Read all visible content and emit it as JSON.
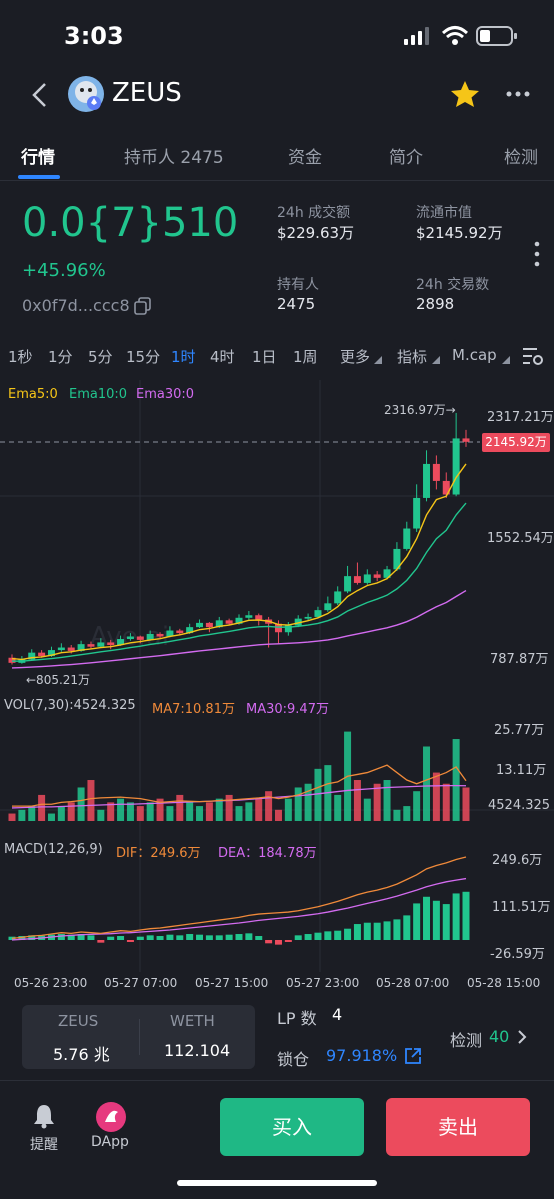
{
  "status_bar": {
    "time": "3:03"
  },
  "header": {
    "title": "ZEUS",
    "back_icon": "chevron-left-icon",
    "star_icon": "star-icon",
    "more_icon": "more-icon"
  },
  "tabs": [
    {
      "label": "行情",
      "active": true
    },
    {
      "label": "持币人 2475",
      "active": false
    },
    {
      "label": "资金",
      "active": false
    },
    {
      "label": "简介",
      "active": false
    },
    {
      "label": "检测",
      "active": false
    }
  ],
  "token": {
    "price": "0.0{7}510",
    "change": "+45.96%",
    "address": "0x0f7d...ccc8"
  },
  "stats": {
    "volume_label": "24h 成交额",
    "volume_value": "$229.63万",
    "mcap_label": "流通市值",
    "mcap_value": "$2145.92万",
    "holders_label": "持有人",
    "holders_value": "2475",
    "tx_label": "24h 交易数",
    "tx_value": "2898"
  },
  "timeframes": [
    "1秒",
    "1分",
    "5分",
    "15分",
    "1时",
    "4时",
    "1日",
    "1周",
    "更多",
    "指标",
    "M.cap"
  ],
  "selected_timeframe": "1时",
  "ema_legend": {
    "ema5": "Ema5:0",
    "ema10": "Ema10:0",
    "ema30": "Ema30:0"
  },
  "price_axis": [
    "2317.21万",
    "1552.54万",
    "787.87万"
  ],
  "current_price_tag": "2145.92万",
  "high_annotation": "2316.97万→",
  "low_annotation": "←805.21万",
  "watermark": "Ave.ai",
  "vol_legend": {
    "vol": "VOL(7,30):4524.325",
    "ma7": "MA7:10.81万",
    "ma30": "MA30:9.47万"
  },
  "vol_axis": [
    "25.77万",
    "13.11万",
    "4524.325"
  ],
  "macd_legend": {
    "macd": "MACD(12,26,9)",
    "dif": "DIF：249.6万",
    "dea": "DEA：184.78万"
  },
  "macd_axis": [
    "249.6万",
    "111.51万",
    "-26.59万"
  ],
  "time_axis": [
    "05-26 23:00",
    "05-27 07:00",
    "05-27 15:00",
    "05-27 23:00",
    "05-28 07:00",
    "05-28 15:00"
  ],
  "pair_card": {
    "token_a": "ZEUS",
    "amount_a": "5.76 兆",
    "token_b": "WETH",
    "amount_b": "112.104"
  },
  "lp": {
    "label": "LP 数",
    "value": "4",
    "lock_label": "锁仓",
    "lock_value": "97.918%"
  },
  "detect": {
    "label": "检测",
    "score": "40"
  },
  "bottom": {
    "alert_label": "提醒",
    "dapp_label": "DApp",
    "buy_label": "买入",
    "sell_label": "卖出"
  },
  "colors": {
    "up": "#21c58e",
    "down": "#ec4b5d",
    "accent": "#2f86ff",
    "ema5": "#f5c518",
    "ema10": "#21c58e",
    "ema30": "#d36bf0",
    "ma7": "#f08a3a"
  },
  "chart_data": {
    "type": "candlestick",
    "ylim": [
      787.87,
      2317.21
    ],
    "candles": [
      [
        860,
        830,
        880,
        820
      ],
      [
        830,
        850,
        870,
        825
      ],
      [
        850,
        890,
        910,
        845
      ],
      [
        890,
        870,
        905,
        860
      ],
      [
        870,
        905,
        925,
        865
      ],
      [
        905,
        920,
        945,
        895
      ],
      [
        920,
        900,
        935,
        885
      ],
      [
        900,
        940,
        960,
        895
      ],
      [
        940,
        925,
        955,
        915
      ],
      [
        925,
        950,
        975,
        920
      ],
      [
        950,
        935,
        965,
        910
      ],
      [
        935,
        970,
        990,
        930
      ],
      [
        970,
        985,
        1005,
        960
      ],
      [
        985,
        965,
        990,
        945
      ],
      [
        965,
        1000,
        1020,
        960
      ],
      [
        1000,
        985,
        1010,
        975
      ],
      [
        985,
        1020,
        1045,
        980
      ],
      [
        1020,
        1005,
        1030,
        995
      ],
      [
        1005,
        1040,
        1060,
        1000
      ],
      [
        1040,
        1065,
        1085,
        1035
      ],
      [
        1065,
        1040,
        1070,
        1010
      ],
      [
        1040,
        1080,
        1100,
        1035
      ],
      [
        1080,
        1060,
        1090,
        1050
      ],
      [
        1060,
        1095,
        1115,
        1055
      ],
      [
        1095,
        1110,
        1135,
        1080
      ],
      [
        1110,
        1085,
        1120,
        1050
      ],
      [
        1085,
        1060,
        1100,
        920
      ],
      [
        1060,
        1010,
        1080,
        940
      ],
      [
        1010,
        1050,
        1070,
        990
      ],
      [
        1050,
        1090,
        1110,
        1040
      ],
      [
        1090,
        1100,
        1120,
        1080
      ],
      [
        1100,
        1140,
        1160,
        1090
      ],
      [
        1140,
        1180,
        1220,
        1130
      ],
      [
        1180,
        1250,
        1280,
        1170
      ],
      [
        1250,
        1340,
        1400,
        1240
      ],
      [
        1340,
        1300,
        1420,
        1290
      ],
      [
        1300,
        1350,
        1380,
        1290
      ],
      [
        1350,
        1330,
        1370,
        1310
      ],
      [
        1330,
        1380,
        1400,
        1320
      ],
      [
        1380,
        1500,
        1540,
        1370
      ],
      [
        1500,
        1620,
        1660,
        1490
      ],
      [
        1620,
        1800,
        1880,
        1600
      ],
      [
        1800,
        2000,
        2080,
        1780
      ],
      [
        2000,
        1900,
        2050,
        1850
      ],
      [
        1900,
        1820,
        1950,
        1800
      ],
      [
        1820,
        2150,
        2300,
        1810
      ],
      [
        2150,
        2130,
        2200,
        2100
      ]
    ],
    "ema5": [
      855,
      850,
      860,
      865,
      875,
      890,
      895,
      905,
      912,
      920,
      925,
      935,
      948,
      955,
      965,
      972,
      985,
      995,
      1008,
      1025,
      1032,
      1045,
      1052,
      1065,
      1080,
      1082,
      1075,
      1055,
      1052,
      1065,
      1078,
      1095,
      1120,
      1160,
      1220,
      1255,
      1285,
      1300,
      1325,
      1380,
      1455,
      1560,
      1700,
      1790,
      1810,
      1920,
      2000
    ],
    "ema10": [
      840,
      840,
      845,
      850,
      855,
      862,
      870,
      878,
      886,
      895,
      902,
      910,
      920,
      928,
      938,
      946,
      956,
      966,
      976,
      988,
      996,
      1006,
      1015,
      1025,
      1036,
      1042,
      1044,
      1040,
      1040,
      1045,
      1052,
      1062,
      1078,
      1100,
      1135,
      1160,
      1185,
      1205,
      1228,
      1265,
      1315,
      1385,
      1480,
      1560,
      1610,
      1700,
      1770
    ],
    "ema30": [
      800,
      802,
      805,
      808,
      812,
      816,
      820,
      825,
      830,
      836,
      842,
      848,
      854,
      860,
      866,
      872,
      879,
      886,
      893,
      900,
      906,
      912,
      918,
      924,
      930,
      936,
      940,
      942,
      945,
      948,
      952,
      958,
      965,
      975,
      988,
      1000,
      1012,
      1024,
      1036,
      1052,
      1072,
      1098,
      1130,
      1160,
      1185,
      1220,
      1255
    ],
    "volume": [
      2,
      3,
      4,
      7,
      2,
      4,
      5,
      9,
      11,
      3,
      5,
      6,
      5,
      4,
      5,
      6,
      4,
      7,
      5,
      4,
      5,
      6,
      7,
      4,
      5,
      6,
      8,
      3,
      6,
      9,
      10,
      14,
      15,
      7,
      24,
      11,
      6,
      10,
      11,
      3,
      4,
      8,
      20,
      13,
      10,
      22,
      9
    ],
    "vol_ma7": [
      4,
      4,
      4,
      4.5,
      4.5,
      5,
      5.2,
      5.5,
      6,
      6.2,
      6.3,
      6.4,
      6.2,
      6,
      5.5,
      5,
      5.2,
      5.4,
      5.3,
      5.2,
      5.3,
      5.5,
      5.6,
      5.8,
      6,
      6.2,
      6.5,
      6,
      6.4,
      7,
      8,
      9,
      10,
      10.5,
      12,
      12.5,
      13,
      14,
      15,
      13,
      11,
      10,
      11,
      12,
      13,
      14.5,
      10.81
    ],
    "vol_ma30": [
      3.5,
      3.6,
      3.7,
      3.8,
      3.8,
      3.9,
      4,
      4.1,
      4.2,
      4.3,
      4.4,
      4.5,
      4.5,
      4.6,
      4.7,
      4.8,
      4.9,
      5,
      5.1,
      5.2,
      5.3,
      5.4,
      5.5,
      5.6,
      5.8,
      6,
      6.2,
      6.4,
      6.6,
      6.8,
      7,
      7.3,
      7.6,
      7.9,
      8.2,
      8.4,
      8.6,
      8.8,
      9,
      9.1,
      9.2,
      9.3,
      9.4,
      9.45,
      9.5,
      9.5,
      9.47
    ],
    "macd_hist": [
      10,
      12,
      14,
      13,
      16,
      18,
      16,
      18,
      14,
      -8,
      10,
      12,
      -6,
      10,
      14,
      12,
      16,
      14,
      18,
      16,
      14,
      14,
      16,
      18,
      20,
      12,
      -10,
      -14,
      -6,
      14,
      18,
      22,
      26,
      28,
      34,
      48,
      52,
      52,
      56,
      62,
      74,
      110,
      130,
      118,
      108,
      140,
      145
    ],
    "dif": [
      5,
      8,
      12,
      14,
      18,
      22,
      20,
      24,
      22,
      20,
      24,
      28,
      26,
      30,
      34,
      36,
      40,
      44,
      48,
      52,
      56,
      60,
      64,
      68,
      74,
      78,
      80,
      82,
      84,
      88,
      94,
      100,
      108,
      116,
      126,
      136,
      144,
      150,
      158,
      168,
      182,
      196,
      214,
      224,
      232,
      242,
      249.6
    ],
    "dea": [
      0,
      2,
      4,
      6,
      9,
      12,
      14,
      16,
      17,
      18,
      19,
      21,
      22,
      24,
      26,
      28,
      30,
      33,
      36,
      39,
      42,
      45,
      48,
      51,
      55,
      59,
      62,
      65,
      68,
      71,
      75,
      79,
      84,
      90,
      96,
      103,
      110,
      117,
      124,
      132,
      141,
      150,
      160,
      168,
      175,
      180,
      184.78
    ]
  }
}
